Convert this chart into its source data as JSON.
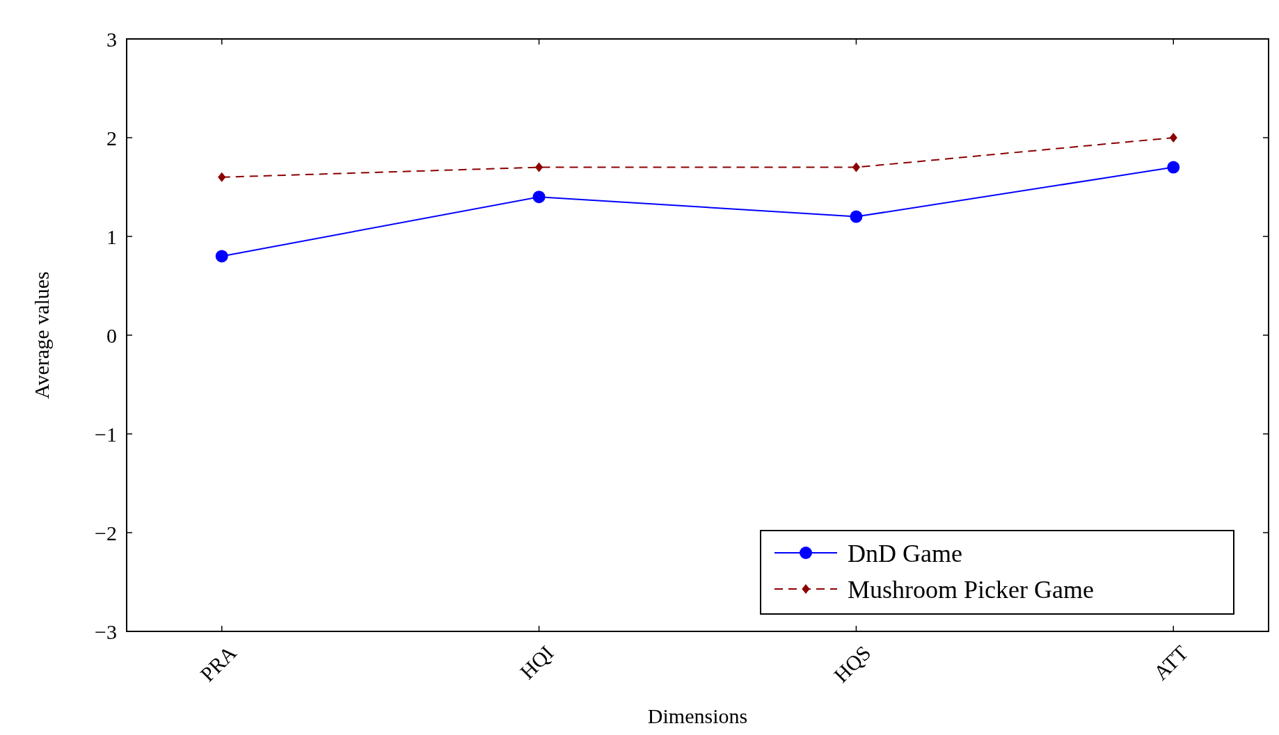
{
  "chart_data": {
    "type": "line",
    "xlabel": "Dimensions",
    "ylabel": "Average values",
    "categories": [
      "PRA",
      "HQI",
      "HQS",
      "ATT"
    ],
    "ylim": [
      -3,
      3
    ],
    "yticks": [
      -3,
      -2,
      -1,
      0,
      1,
      2,
      3
    ],
    "grid": false,
    "legend": "bottom right",
    "series": [
      {
        "name": "DnD Game",
        "color": "#0000ff",
        "values": [
          0.8,
          1.4,
          1.2,
          1.7
        ],
        "marker": "circle",
        "line_style": "solid"
      },
      {
        "name": "Mushroom Picker Game",
        "color": "#8b0000",
        "values": [
          1.6,
          1.7,
          1.7,
          2.0
        ],
        "marker": "diamond",
        "line_style": "dashed"
      }
    ]
  }
}
